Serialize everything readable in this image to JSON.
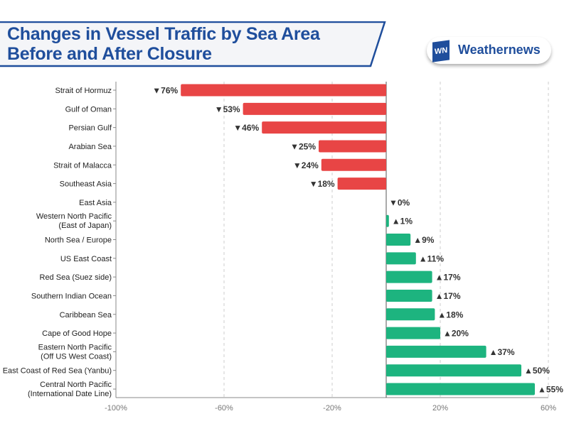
{
  "header": {
    "title_line1": "Changes in Vessel Traffic by Sea Area",
    "title_line2": "Before and After Closure",
    "logo_text": "Weathernews",
    "logo_mark": "WN"
  },
  "colors": {
    "decrease": "#e84545",
    "increase": "#1db47f",
    "brand": "#1f4e9c"
  },
  "chart_data": {
    "type": "bar",
    "orientation": "horizontal",
    "title": "Changes in Vessel Traffic by Sea Area Before and After Closure",
    "categories": [
      [
        "Strait of Hormuz"
      ],
      [
        "Gulf of Oman"
      ],
      [
        "Persian Gulf"
      ],
      [
        "Arabian Sea"
      ],
      [
        "Strait of Malacca"
      ],
      [
        "Southeast Asia"
      ],
      [
        "East Asia"
      ],
      [
        "Western North Pacific",
        "(East of Japan)"
      ],
      [
        "North Sea / Europe"
      ],
      [
        "US East Coast"
      ],
      [
        "Red Sea (Suez side)"
      ],
      [
        "Southern Indian Ocean"
      ],
      [
        "Caribbean Sea"
      ],
      [
        "Cape of Good Hope"
      ],
      [
        "Eastern North Pacific",
        "(Off US West Coast)"
      ],
      [
        "East  Coast of Red Sea (Yanbu)"
      ],
      [
        "Central North Pacific",
        "(International Date Line)"
      ]
    ],
    "values": [
      -76,
      -53,
      -46,
      -25,
      -24,
      -18,
      0,
      1,
      9,
      11,
      17,
      17,
      18,
      20,
      37,
      50,
      55
    ],
    "data_labels": [
      "▼76%",
      "▼53%",
      "▼46%",
      "▼25%",
      "▼24%",
      "▼18%",
      "▼0%",
      "▲1%",
      "▲9%",
      "▲11%",
      "▲17%",
      "▲17%",
      "▲18%",
      "▲20%",
      "▲37%",
      "▲50%",
      "▲55%"
    ],
    "xlim": [
      -100,
      60
    ],
    "xticks": [
      -100,
      -60,
      -20,
      20,
      60
    ],
    "xtick_labels": [
      "-100%",
      "-60%",
      "-20%",
      "20%",
      "60%"
    ],
    "grid": "vertical dashed"
  }
}
